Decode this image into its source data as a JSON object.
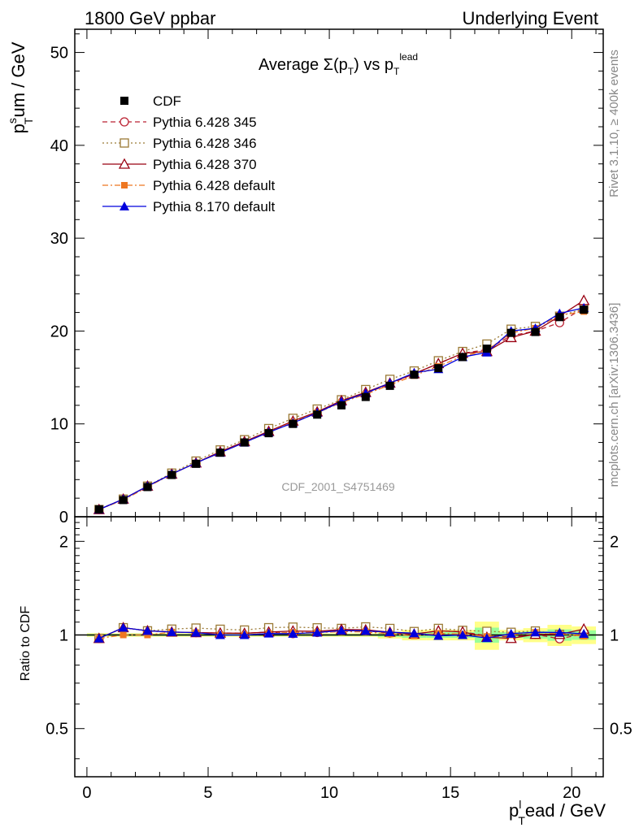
{
  "header": {
    "left": "1800 GeV ppbar",
    "right": "Underlying Event"
  },
  "side": {
    "rivet": "Rivet 3.1.10, ≥ 400k events",
    "mcplots": "mcplots.cern.ch [arXiv:1306.3436]"
  },
  "plot": {
    "title_main": "Average Σ(p",
    "title_sub": "T",
    "title_mid": ") vs p",
    "title_sub2": "T",
    "title_sup2": "lead",
    "ylabel_p": "p",
    "ylabel_sup": "s",
    "ylabel_sub": "T",
    "ylabel_rest": "um / GeV",
    "xlabel_p": "p",
    "xlabel_sup": "l",
    "xlabel_sub": "T",
    "xlabel_rest": "ead / GeV",
    "ratio_ylabel": "Ratio to CDF",
    "watermark": "CDF_2001_S4751469"
  },
  "chart_data": {
    "type": "line",
    "xlim": [
      -0.5,
      21.3
    ],
    "ylim": [
      0,
      52.5
    ],
    "ratio_ylim": [
      0.35,
      2.4
    ],
    "x_ticks": [
      "0",
      "5",
      "10",
      "15",
      "20"
    ],
    "y_ticks": [
      "0",
      "10",
      "20",
      "30",
      "40",
      "50"
    ],
    "ratio_ticks": [
      "0.5",
      "1",
      "2"
    ],
    "x": [
      0.5,
      1.5,
      2.5,
      3.5,
      4.5,
      5.5,
      6.5,
      7.5,
      8.5,
      9.5,
      10.5,
      11.5,
      12.5,
      13.5,
      14.5,
      15.5,
      16.5,
      17.5,
      18.5,
      19.5,
      20.5
    ],
    "series": [
      {
        "name": "CDF",
        "color": "#000000",
        "marker": "square-filled",
        "dash": "none",
        "values": [
          0.8,
          1.8,
          3.2,
          4.5,
          5.7,
          6.9,
          8.0,
          9.0,
          10.0,
          11.0,
          12.0,
          12.9,
          14.1,
          15.3,
          16.0,
          17.2,
          18.1,
          19.8,
          19.9,
          21.5,
          22.3
        ],
        "band": [
          0.01,
          0.01,
          0.01,
          0.01,
          0.01,
          0.01,
          0.01,
          0.01,
          0.01,
          0.01,
          0.01,
          0.01,
          0.02,
          0.03,
          0.03,
          0.03,
          0.08,
          0.03,
          0.04,
          0.06,
          0.05
        ]
      },
      {
        "name": "Pythia 6.428 345",
        "color": "#bb2233",
        "marker": "circle-open",
        "dash": "6,4",
        "values": [
          0.78,
          1.9,
          3.3,
          4.6,
          5.8,
          7.0,
          8.1,
          9.2,
          10.1,
          11.2,
          12.4,
          13.3,
          14.3,
          15.4,
          16.5,
          17.6,
          18.0,
          19.5,
          20.0,
          20.9,
          22.5
        ]
      },
      {
        "name": "Pythia 6.428 346",
        "color": "#9b7a35",
        "marker": "square-open",
        "dash": "2,3",
        "values": [
          0.78,
          1.9,
          3.3,
          4.7,
          6.0,
          7.2,
          8.3,
          9.5,
          10.6,
          11.6,
          12.6,
          13.7,
          14.8,
          15.7,
          16.8,
          17.8,
          18.6,
          20.2,
          20.5,
          21.6,
          22.4
        ]
      },
      {
        "name": "Pythia 6.428 370",
        "color": "#990011",
        "marker": "triangle-open",
        "dash": "none",
        "values": [
          0.78,
          1.9,
          3.3,
          4.6,
          5.8,
          7.0,
          8.1,
          9.2,
          10.3,
          11.3,
          12.5,
          13.4,
          14.4,
          15.4,
          16.5,
          17.6,
          17.8,
          19.3,
          20.0,
          21.6,
          23.3
        ]
      },
      {
        "name": "Pythia 6.428 default",
        "color": "#ee7722",
        "marker": "square-filled-small",
        "dash": "7,3,2,3",
        "values": [
          0.78,
          1.8,
          3.2,
          4.6,
          5.8,
          6.9,
          8.0,
          9.1,
          10.2,
          11.2,
          12.3,
          13.2,
          14.2,
          15.2,
          16.2,
          17.3,
          17.9,
          19.8,
          20.3,
          21.7,
          22.1
        ]
      },
      {
        "name": "Pythia 8.170 default",
        "color": "#0000dd",
        "marker": "triangle-filled",
        "dash": "none",
        "values": [
          0.78,
          1.9,
          3.3,
          4.6,
          5.8,
          6.9,
          8.0,
          9.1,
          10.1,
          11.2,
          12.4,
          13.3,
          14.4,
          15.5,
          15.9,
          17.2,
          17.7,
          20.0,
          20.3,
          21.9,
          22.5
        ]
      }
    ]
  }
}
